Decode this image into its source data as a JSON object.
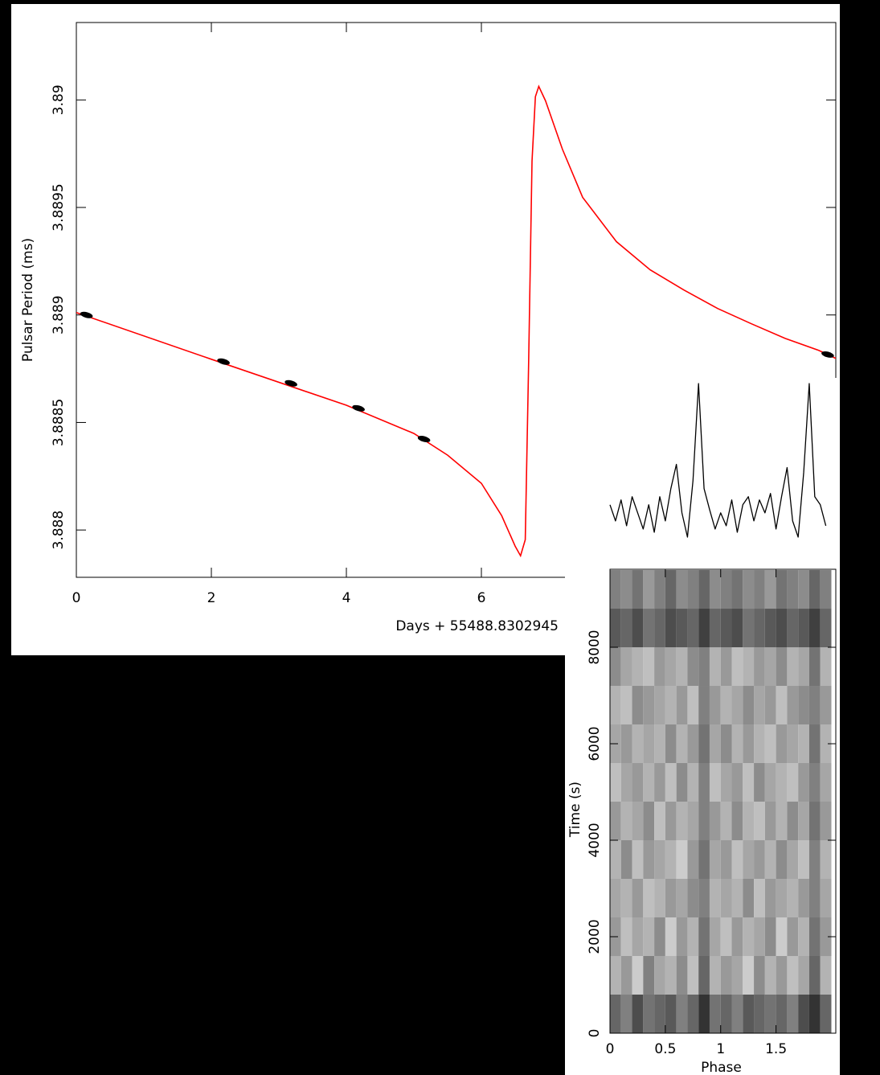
{
  "chart_data": [
    {
      "type": "line",
      "xlabel": "Days + 55488.8302945",
      "ylabel": "Pulsar Period (ms)",
      "xlim": [
        0,
        11.25
      ],
      "ylim": [
        3.88778,
        3.89036
      ],
      "xticks": [
        0,
        2,
        4,
        6
      ],
      "yticks": [
        3.888,
        3.8885,
        3.889,
        3.8895,
        3.89
      ],
      "series": [
        {
          "style": "line",
          "color": "#ff0000",
          "x": [
            0,
            2,
            4,
            5,
            5.5,
            6,
            6.3,
            6.5,
            6.58,
            6.65,
            6.7,
            6.75,
            6.8,
            6.85,
            6.95,
            7.2,
            7.5,
            8,
            8.5,
            9,
            9.5,
            10,
            10.5,
            11,
            11.25
          ],
          "values": [
            3.889011,
            3.888794,
            3.88858,
            3.888449,
            3.888348,
            3.888217,
            3.888067,
            3.887925,
            3.88788,
            3.887955,
            3.888779,
            3.889715,
            3.890015,
            3.890063,
            3.889996,
            3.889771,
            3.889547,
            3.889341,
            3.88921,
            3.889116,
            3.88903,
            3.888959,
            3.888891,
            3.888835,
            3.888798
          ]
        },
        {
          "style": "markers",
          "color": "#000000",
          "x": [
            0.15,
            2.18,
            3.18,
            4.18,
            5.15,
            11.13
          ],
          "values": [
            3.889,
            3.888783,
            3.888682,
            3.888566,
            3.888423,
            3.888816
          ]
        }
      ]
    },
    {
      "type": "line",
      "color": "#000000",
      "xlim": [
        0,
        2.04
      ],
      "x": [
        0,
        0.05,
        0.1,
        0.15,
        0.2,
        0.25,
        0.3,
        0.35,
        0.4,
        0.45,
        0.5,
        0.55,
        0.6,
        0.65,
        0.7,
        0.75,
        0.8,
        0.85,
        0.9,
        0.95,
        1,
        1.05,
        1.1,
        1.15,
        1.2,
        1.25,
        1.3,
        1.35,
        1.4,
        1.45,
        1.5,
        1.55,
        1.6,
        1.65,
        1.7,
        1.75,
        1.8,
        1.85,
        1.9,
        1.95
      ],
      "values": [
        0.25,
        0.15,
        0.28,
        0.12,
        0.3,
        0.2,
        0.1,
        0.25,
        0.08,
        0.3,
        0.15,
        0.35,
        0.5,
        0.2,
        0.05,
        0.4,
        1.0,
        0.35,
        0.22,
        0.1,
        0.2,
        0.12,
        0.28,
        0.08,
        0.25,
        0.3,
        0.15,
        0.28,
        0.2,
        0.32,
        0.1,
        0.3,
        0.48,
        0.15,
        0.05,
        0.45,
        1.0,
        0.3,
        0.25,
        0.12
      ]
    },
    {
      "type": "heatmap",
      "xlabel": "Phase",
      "ylabel": "Time (s)",
      "xlim": [
        0,
        2.04
      ],
      "ylim": [
        0,
        9617
      ],
      "xticks": [
        0,
        0.5,
        1,
        1.5
      ],
      "yticks": [
        0,
        2000,
        4000,
        6000,
        8000
      ],
      "xbins": [
        0,
        0.1,
        0.2,
        0.3,
        0.4,
        0.5,
        0.6,
        0.7,
        0.8,
        0.9,
        1,
        1.1,
        1.2,
        1.3,
        1.4,
        1.5,
        1.6,
        1.7,
        1.8,
        1.9,
        2
      ],
      "ybins": [
        0,
        800,
        1600,
        2400,
        3200,
        4000,
        4800,
        5600,
        6400,
        7200,
        8000,
        8800,
        9600
      ],
      "z": [
        [
          0.6,
          0.5,
          0.7,
          0.55,
          0.6,
          0.65,
          0.5,
          0.6,
          0.8,
          0.55,
          0.6,
          0.5,
          0.65,
          0.6,
          0.55,
          0.6,
          0.5,
          0.7,
          0.8,
          0.6
        ],
        [
          0.3,
          0.4,
          0.2,
          0.5,
          0.35,
          0.3,
          0.45,
          0.25,
          0.6,
          0.3,
          0.4,
          0.35,
          0.2,
          0.45,
          0.3,
          0.4,
          0.25,
          0.35,
          0.6,
          0.3
        ],
        [
          0.4,
          0.25,
          0.35,
          0.3,
          0.45,
          0.2,
          0.4,
          0.3,
          0.55,
          0.35,
          0.25,
          0.4,
          0.3,
          0.35,
          0.45,
          0.2,
          0.4,
          0.3,
          0.55,
          0.4
        ],
        [
          0.35,
          0.3,
          0.4,
          0.25,
          0.3,
          0.4,
          0.35,
          0.45,
          0.5,
          0.3,
          0.35,
          0.3,
          0.45,
          0.25,
          0.4,
          0.35,
          0.3,
          0.4,
          0.5,
          0.35
        ],
        [
          0.3,
          0.45,
          0.25,
          0.4,
          0.35,
          0.3,
          0.2,
          0.4,
          0.55,
          0.35,
          0.4,
          0.25,
          0.35,
          0.4,
          0.3,
          0.45,
          0.35,
          0.25,
          0.5,
          0.3
        ],
        [
          0.4,
          0.3,
          0.35,
          0.45,
          0.25,
          0.4,
          0.3,
          0.35,
          0.5,
          0.4,
          0.3,
          0.45,
          0.3,
          0.25,
          0.4,
          0.3,
          0.45,
          0.35,
          0.55,
          0.4
        ],
        [
          0.25,
          0.35,
          0.4,
          0.3,
          0.4,
          0.25,
          0.45,
          0.3,
          0.5,
          0.25,
          0.35,
          0.4,
          0.25,
          0.45,
          0.35,
          0.3,
          0.25,
          0.4,
          0.5,
          0.35
        ],
        [
          0.35,
          0.4,
          0.3,
          0.35,
          0.3,
          0.45,
          0.3,
          0.4,
          0.55,
          0.35,
          0.45,
          0.3,
          0.4,
          0.3,
          0.25,
          0.4,
          0.35,
          0.3,
          0.55,
          0.3
        ],
        [
          0.3,
          0.25,
          0.45,
          0.4,
          0.35,
          0.3,
          0.4,
          0.25,
          0.5,
          0.4,
          0.3,
          0.35,
          0.45,
          0.35,
          0.4,
          0.25,
          0.4,
          0.45,
          0.5,
          0.4
        ],
        [
          0.45,
          0.35,
          0.3,
          0.25,
          0.4,
          0.35,
          0.3,
          0.45,
          0.5,
          0.3,
          0.4,
          0.25,
          0.3,
          0.4,
          0.35,
          0.45,
          0.3,
          0.35,
          0.55,
          0.3
        ],
        [
          0.65,
          0.6,
          0.7,
          0.55,
          0.6,
          0.7,
          0.65,
          0.6,
          0.75,
          0.6,
          0.65,
          0.7,
          0.55,
          0.6,
          0.65,
          0.7,
          0.6,
          0.65,
          0.75,
          0.6
        ],
        [
          0.5,
          0.45,
          0.55,
          0.4,
          0.5,
          0.6,
          0.45,
          0.5,
          0.6,
          0.45,
          0.5,
          0.55,
          0.45,
          0.5,
          0.4,
          0.55,
          0.5,
          0.45,
          0.6,
          0.5
        ]
      ]
    }
  ]
}
